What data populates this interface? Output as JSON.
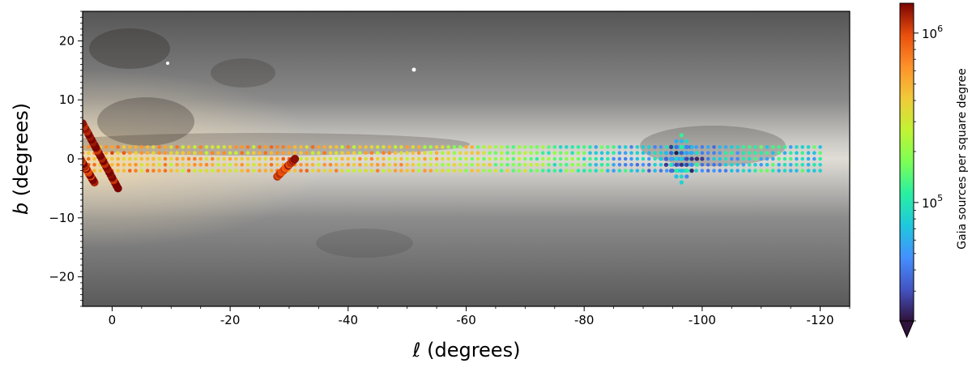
{
  "chart_data": {
    "type": "scatter",
    "background": "Gaia all-sky image of the Galactic plane (grayscale)",
    "xlabel_var": "ℓ",
    "xlabel_unit": " (degrees)",
    "ylabel_var": "b",
    "ylabel_unit": " (degrees)",
    "xlim": [
      5,
      -125
    ],
    "ylim": [
      -25,
      25
    ],
    "x_ticks": [
      0,
      -20,
      -40,
      -60,
      -80,
      -100,
      -120
    ],
    "x_tick_labels": [
      "0",
      "-20",
      "-40",
      "-60",
      "-80",
      "-100",
      "-120"
    ],
    "y_ticks": [
      -20,
      -10,
      0,
      10,
      20
    ],
    "y_tick_labels": [
      "−20",
      "−10",
      "0",
      "10",
      "20"
    ],
    "colorbar": {
      "label": "Gaia sources per square degree",
      "scale": "log",
      "range": [
        20000,
        1500000
      ],
      "ticks": [
        {
          "value": 100000,
          "base": "10",
          "exp": "5"
        },
        {
          "value": 1000000,
          "base": "10",
          "exp": "6"
        }
      ],
      "extend": "min",
      "colormap": "turbo"
    },
    "grid_survey": {
      "l_range": [
        6,
        -120
      ],
      "l_step": 1,
      "b_values": [
        -2,
        -1,
        0,
        1,
        2
      ],
      "density_profile": [
        {
          "l": 6,
          "density": 700000
        },
        {
          "l": -10,
          "density": 450000
        },
        {
          "l": -30,
          "density": 500000
        },
        {
          "l": -50,
          "density": 400000
        },
        {
          "l": -60,
          "density": 300000
        },
        {
          "l": -70,
          "density": 200000
        },
        {
          "l": -80,
          "density": 120000
        },
        {
          "l": -90,
          "density": 60000
        },
        {
          "l": -100,
          "density": 55000
        },
        {
          "l": -110,
          "density": 90000
        },
        {
          "l": -120,
          "density": 95000
        }
      ]
    },
    "strips": [
      {
        "l_start": -1,
        "b_start": -5,
        "l_end": 5,
        "b_end": 6,
        "density": 1400000
      },
      {
        "l_start": 3,
        "b_start": -4,
        "l_end": 6,
        "b_end": 1,
        "density": 1300000
      },
      {
        "l_start": -28,
        "b_start": -3,
        "l_end": -31,
        "b_end": 0,
        "density": 1100000
      }
    ],
    "diamond": {
      "l_center": -96.5,
      "b_center": 0,
      "half_width_l": 3.5,
      "half_height_b": 4,
      "density": 50000
    }
  }
}
